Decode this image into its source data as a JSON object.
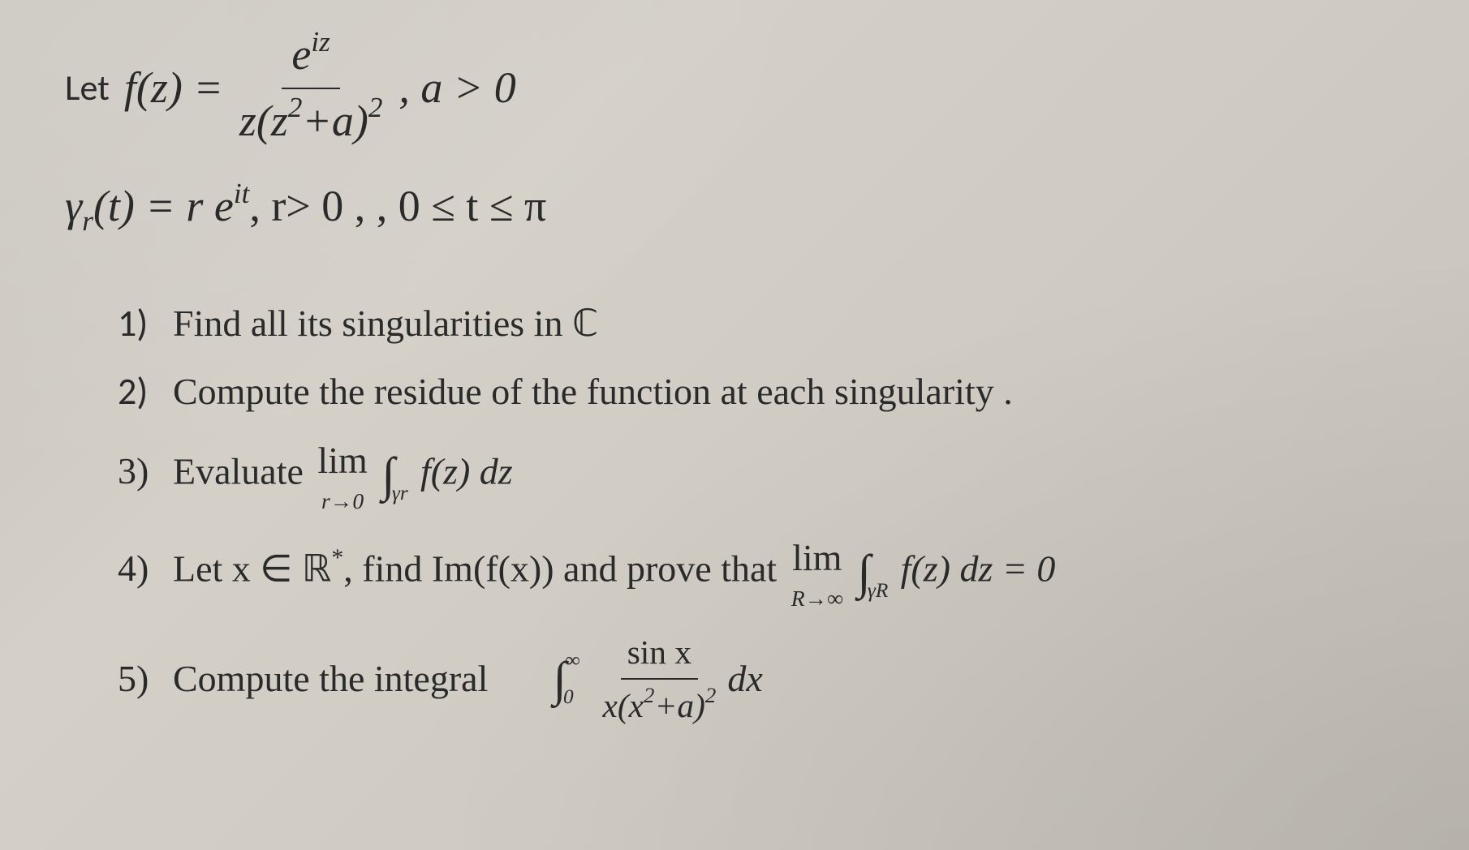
{
  "setup": {
    "let_label": "Let",
    "func_lhs": "f(z) =",
    "frac_num": "e",
    "frac_num_sup": "iz",
    "frac_den_z": "z(z",
    "frac_den_sup": "2",
    "frac_den_plus": "+a)",
    "frac_den_sup2": "2",
    "condition": " ,  a > 0",
    "gamma_def": "γ",
    "gamma_sub": "r",
    "gamma_eq": "(t) = r e",
    "gamma_sup": "it",
    "gamma_cond": ", r>   0   ,  ,  0 ≤ t ≤ π"
  },
  "questions": {
    "q1": {
      "num": "1)",
      "text": "Find all its singularities in  ℂ"
    },
    "q2": {
      "num": "2)",
      "text": "Compute the residue of the function at each singularity ."
    },
    "q3": {
      "num": "3)",
      "text_pre": "Evaluate ",
      "lim": "lim",
      "lim_sub": "r→0",
      "int_sym": "∫",
      "int_sub": "γr",
      "integrand": " f(z) dz"
    },
    "q4": {
      "num": "4)",
      "text_pre": "Let x ∈ ℝ",
      "star": "*",
      "text_mid": ", find Im(f(x)) and prove that ",
      "lim": "lim",
      "lim_sub": "R→∞",
      "int_sym": "∫",
      "int_sub": "γR",
      "integrand": " f(z) dz = 0"
    },
    "q5": {
      "num": "5)",
      "text": "Compute the integral",
      "int_sym": "∫",
      "int_low": "0",
      "int_up": "∞",
      "frac_num": "sin x",
      "frac_den_pre": "x(x",
      "frac_den_sup": "2",
      "frac_den_post": "+a)",
      "frac_den_sup2": "2",
      "dx": " dx"
    }
  },
  "style": {
    "text_color": "#2a2a2a",
    "background_base": "#cfcbc3",
    "body_font": "Times New Roman",
    "sans_font": "Segoe UI",
    "base_fontsize": 46,
    "math_fontsize": 54
  }
}
